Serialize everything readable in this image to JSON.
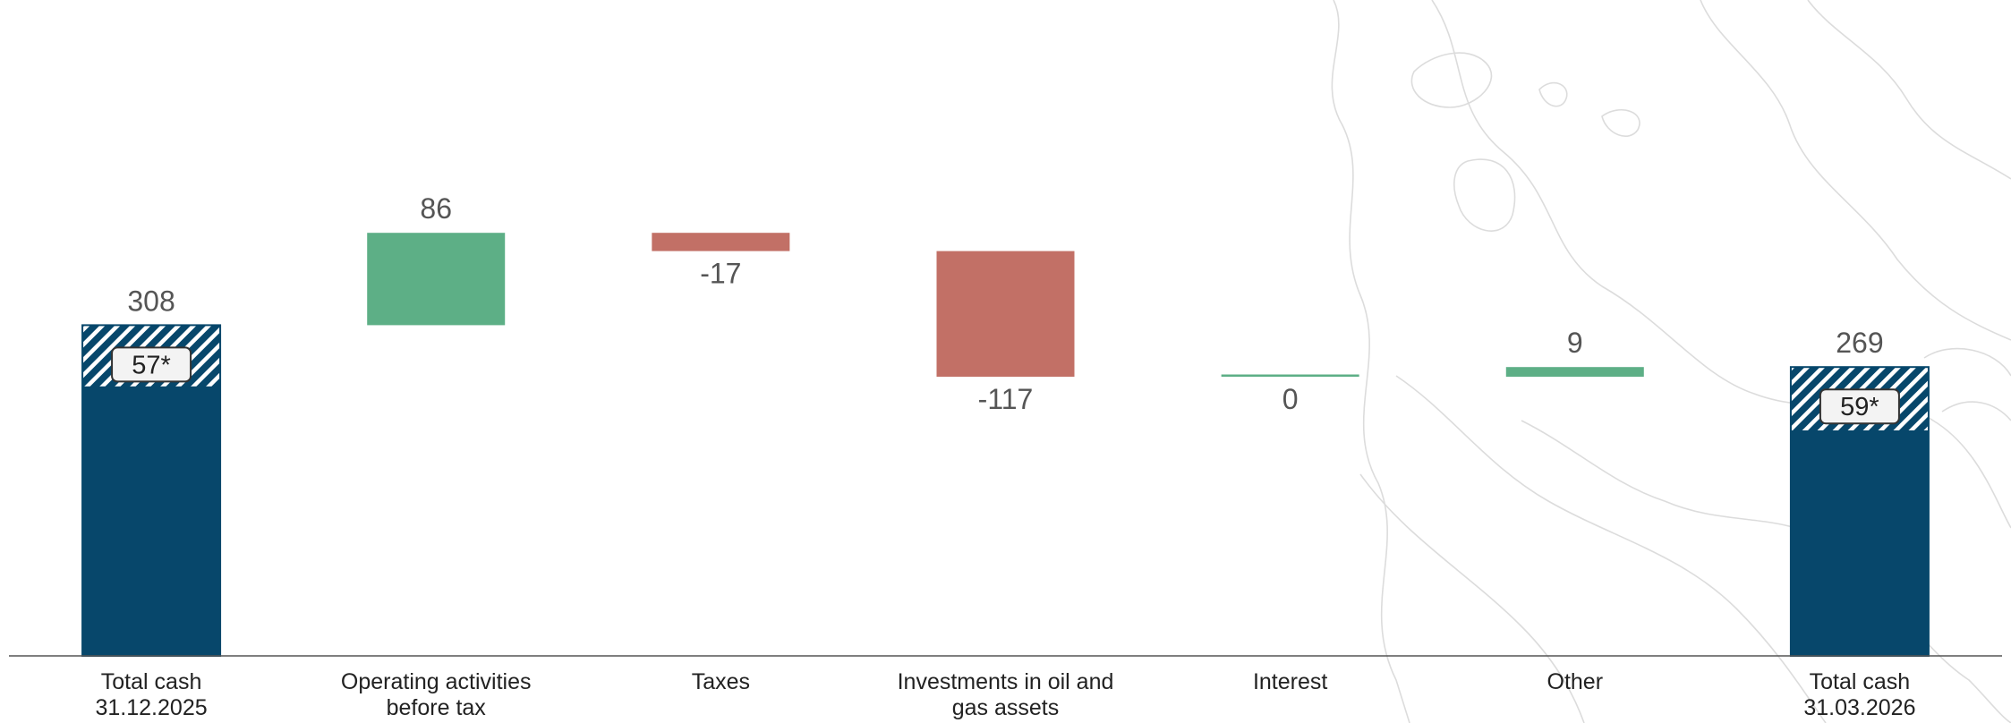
{
  "chart_data": {
    "type": "bar",
    "subtype": "waterfall",
    "categories": [
      [
        "Total cash",
        "31.12.2025"
      ],
      [
        "Operating activities",
        "before tax"
      ],
      [
        "Taxes"
      ],
      [
        "Investments in oil and",
        "gas assets"
      ],
      [
        "Interest"
      ],
      [
        "Other"
      ],
      [
        "Total cash",
        "31.03.2026"
      ]
    ],
    "values": [
      308,
      86,
      -17,
      -117,
      0,
      9,
      269
    ],
    "value_labels": [
      "308",
      "86",
      "-17",
      "-117",
      "0",
      "9",
      "269"
    ],
    "kinds": [
      "total",
      "delta",
      "delta",
      "delta",
      "delta",
      "delta",
      "total"
    ],
    "hatched_portion": [
      57,
      null,
      null,
      null,
      null,
      null,
      59
    ],
    "hatched_labels": [
      "57*",
      "",
      "",
      "",
      "",
      "",
      "59*"
    ],
    "ylim": [
      0,
      394
    ],
    "grid": false,
    "legend": "none",
    "colors": {
      "total": "#07476b",
      "increase": "#5daf86",
      "decrease": "#c27066",
      "hatch_stripe": "#ffffff",
      "axis": "#555555"
    }
  }
}
